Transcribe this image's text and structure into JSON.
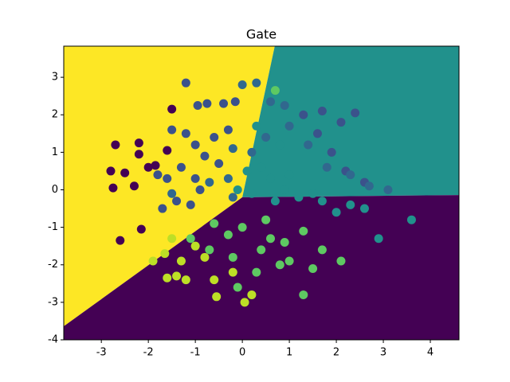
{
  "chart_data": {
    "type": "scatter",
    "title": "Gate",
    "xlim": [
      -3.8,
      4.61
    ],
    "ylim": [
      -4,
      3.83
    ],
    "xticks": [
      -3,
      -2,
      -1,
      0,
      1,
      2,
      3,
      4
    ],
    "yticks": [
      -4,
      -3,
      -2,
      -1,
      0,
      1,
      2,
      3
    ],
    "grid": false,
    "regions": [
      {
        "color": "#fde725",
        "polygon": [
          [
            -3.8,
            3.83
          ],
          [
            0.69,
            3.83
          ],
          [
            0.0,
            -0.2
          ],
          [
            -3.8,
            -3.64
          ]
        ]
      },
      {
        "color": "#21918c",
        "polygon": [
          [
            0.69,
            3.83
          ],
          [
            4.61,
            3.83
          ],
          [
            4.61,
            -0.14
          ],
          [
            0.0,
            -0.2
          ]
        ]
      },
      {
        "color": "#440154",
        "polygon": [
          [
            -3.8,
            -3.64
          ],
          [
            0.0,
            -0.2
          ],
          [
            4.61,
            -0.14
          ],
          [
            4.61,
            -4
          ],
          [
            -3.8,
            -4
          ]
        ]
      }
    ],
    "points": [
      [
        -2.8,
        0.5
      ],
      [
        -2.75,
        0.05
      ],
      [
        -2.7,
        1.2
      ],
      [
        -2.6,
        -1.35
      ],
      [
        -2.5,
        0.45
      ],
      [
        -2.2,
        1.25
      ],
      [
        -2.2,
        0.95
      ],
      [
        -2.15,
        -1.05
      ],
      [
        -2.0,
        0.6
      ],
      [
        -2.3,
        0.1
      ],
      [
        -1.85,
        0.65
      ],
      [
        -1.6,
        1.05
      ],
      [
        -1.5,
        2.15
      ],
      [
        -1.2,
        2.85
      ],
      [
        -0.95,
        2.25
      ],
      [
        -0.75,
        2.3
      ],
      [
        -0.4,
        2.3
      ],
      [
        -0.15,
        2.35
      ],
      [
        -1.5,
        1.6
      ],
      [
        -1.2,
        1.5
      ],
      [
        -1.0,
        1.2
      ],
      [
        -0.8,
        0.9
      ],
      [
        -1.3,
        0.6
      ],
      [
        -1.6,
        0.3
      ],
      [
        -1.8,
        0.4
      ],
      [
        -1.0,
        0.3
      ],
      [
        -1.4,
        -0.3
      ],
      [
        -1.7,
        -0.5
      ],
      [
        -0.6,
        1.4
      ],
      [
        -0.3,
        1.6
      ],
      [
        -0.5,
        0.7
      ],
      [
        -1.1,
        -0.4
      ],
      [
        -0.9,
        0.0
      ],
      [
        1.3,
        2.0
      ],
      [
        1.7,
        2.1
      ],
      [
        2.1,
        1.8
      ],
      [
        2.4,
        2.05
      ],
      [
        1.9,
        1.0
      ],
      [
        2.2,
        0.5
      ],
      [
        2.6,
        0.2
      ],
      [
        1.6,
        1.5
      ],
      [
        0.0,
        2.8
      ],
      [
        0.3,
        2.85
      ],
      [
        0.6,
        2.35
      ],
      [
        0.9,
        2.25
      ],
      [
        1.0,
        1.7
      ],
      [
        0.5,
        1.4
      ],
      [
        0.2,
        1.0
      ],
      [
        -0.2,
        1.1
      ],
      [
        1.4,
        1.2
      ],
      [
        1.8,
        0.6
      ],
      [
        2.3,
        0.4
      ],
      [
        2.7,
        0.1
      ],
      [
        3.1,
        0.0
      ],
      [
        -0.7,
        0.2
      ],
      [
        -0.3,
        0.3
      ],
      [
        -1.5,
        -0.1
      ],
      [
        -0.2,
        -0.2
      ],
      [
        0.4,
        0.6
      ],
      [
        0.6,
        0.3
      ],
      [
        0.9,
        0.0
      ],
      [
        1.2,
        -0.2
      ],
      [
        1.5,
        -0.1
      ],
      [
        0.2,
        -0.1
      ],
      [
        0.7,
        -0.3
      ],
      [
        1.0,
        0.4
      ],
      [
        0.1,
        0.5
      ],
      [
        0.3,
        1.7
      ],
      [
        0.8,
        1.2
      ],
      [
        -0.1,
        0.0
      ],
      [
        1.7,
        -0.3
      ],
      [
        2.0,
        -0.6
      ],
      [
        2.3,
        -0.4
      ],
      [
        2.6,
        -0.5
      ],
      [
        3.6,
        -0.8
      ],
      [
        2.9,
        -1.3
      ],
      [
        0.5,
        -0.8
      ],
      [
        0.0,
        -1.0
      ],
      [
        -0.3,
        -1.2
      ],
      [
        -0.6,
        -0.9
      ],
      [
        0.9,
        -1.4
      ],
      [
        1.3,
        -1.1
      ],
      [
        1.7,
        -1.6
      ],
      [
        2.1,
        -1.9
      ],
      [
        1.0,
        -1.9
      ],
      [
        0.4,
        -1.6
      ],
      [
        -0.2,
        -1.8
      ],
      [
        -0.7,
        -1.6
      ],
      [
        -1.1,
        -1.3
      ],
      [
        -0.1,
        -2.6
      ],
      [
        0.3,
        -2.2
      ],
      [
        0.6,
        -1.3
      ],
      [
        1.5,
        -2.1
      ],
      [
        1.3,
        -2.8
      ],
      [
        0.8,
        -2.0
      ],
      [
        0.7,
        2.65
      ],
      [
        -1.3,
        -1.9
      ],
      [
        -0.8,
        -1.8
      ],
      [
        -1.2,
        -2.4
      ],
      [
        -0.6,
        -2.4
      ],
      [
        -1.5,
        -1.3
      ],
      [
        -0.2,
        -2.2
      ],
      [
        0.2,
        -2.8
      ],
      [
        -1.9,
        -1.9
      ],
      [
        -1.6,
        -2.35
      ],
      [
        -1.4,
        -2.3
      ],
      [
        -0.55,
        -2.85
      ],
      [
        0.05,
        -3.0
      ],
      [
        -1.65,
        -1.7
      ],
      [
        -1.0,
        -1.5
      ]
    ],
    "point_colors": [
      "#440154",
      "#440154",
      "#440154",
      "#440154",
      "#440154",
      "#440154",
      "#440154",
      "#440154",
      "#440154",
      "#440154",
      "#440154",
      "#440154",
      "#440154",
      "#3b528b",
      "#3b528b",
      "#3b528b",
      "#3b528b",
      "#3b528b",
      "#3b528b",
      "#3b528b",
      "#3b528b",
      "#3b528b",
      "#3b528b",
      "#3b528b",
      "#3b528b",
      "#3b528b",
      "#3b528b",
      "#3b528b",
      "#3b528b",
      "#3b528b",
      "#3b528b",
      "#3b528b",
      "#3b528b",
      "#3b528b",
      "#3b528b",
      "#3b528b",
      "#3b528b",
      "#3b528b",
      "#3b528b",
      "#3b528b",
      "#3b528b",
      "#31688e",
      "#31688e",
      "#31688e",
      "#31688e",
      "#31688e",
      "#31688e",
      "#31688e",
      "#31688e",
      "#31688e",
      "#31688e",
      "#31688e",
      "#31688e",
      "#31688e",
      "#31688e",
      "#31688e",
      "#31688e",
      "#31688e",
      "#21918c",
      "#21918c",
      "#21918c",
      "#21918c",
      "#21918c",
      "#21918c",
      "#21918c",
      "#21918c",
      "#21918c",
      "#21918c",
      "#21918c",
      "#21918c",
      "#21918c",
      "#21918c",
      "#21918c",
      "#21918c",
      "#21918c",
      "#21918c",
      "#5ec962",
      "#5ec962",
      "#5ec962",
      "#5ec962",
      "#5ec962",
      "#5ec962",
      "#5ec962",
      "#5ec962",
      "#5ec962",
      "#5ec962",
      "#5ec962",
      "#5ec962",
      "#5ec962",
      "#5ec962",
      "#5ec962",
      "#5ec962",
      "#5ec962",
      "#5ec962",
      "#5ec962",
      "#5ec962",
      "#bddf26",
      "#bddf26",
      "#bddf26",
      "#bddf26",
      "#bddf26",
      "#bddf26",
      "#bddf26",
      "#bddf26",
      "#bddf26",
      "#bddf26",
      "#bddf26",
      "#bddf26",
      "#bddf26",
      "#bddf26"
    ]
  }
}
